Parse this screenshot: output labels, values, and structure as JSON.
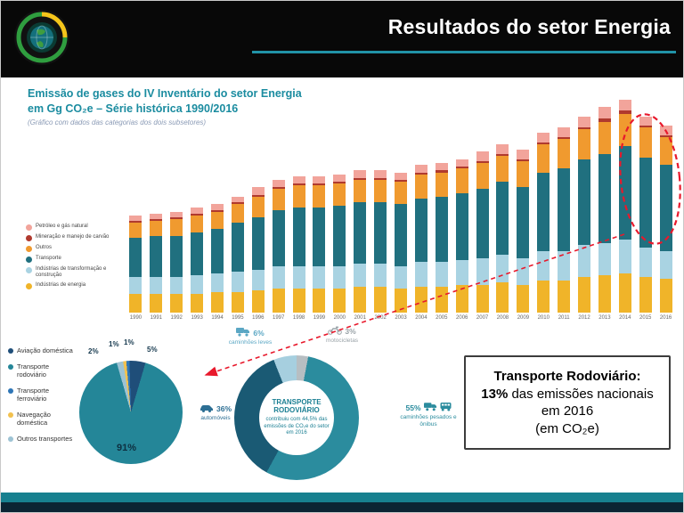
{
  "header": {
    "title": "Resultados do setor Energia"
  },
  "chart_section": {
    "title_line1": "Emissão de gases do IV Inventário do setor Energia",
    "title_line2": "em Gg CO₂e  – Série histórica 1990/2016",
    "subtitle": "(Gráfico com dados das categorias dos dois subsetores)"
  },
  "chart_data": [
    {
      "type": "bar",
      "stacked": true,
      "title": "Emissão de gases do IV Inventário do setor Energia em Gg CO₂e – Série histórica 1990/2016",
      "categories": [
        "1990",
        "1991",
        "1992",
        "1993",
        "1994",
        "1995",
        "1996",
        "1997",
        "1998",
        "1999",
        "2000",
        "2001",
        "2002",
        "2003",
        "2004",
        "2005",
        "2006",
        "2007",
        "2008",
        "2009",
        "2010",
        "2011",
        "2012",
        "2013",
        "2014",
        "2015",
        "2016"
      ],
      "series": [
        {
          "name": "Indústrias de energia",
          "color": "#f0b429",
          "values": [
            10,
            10,
            10,
            10,
            11,
            11,
            12,
            13,
            13,
            13,
            13,
            14,
            14,
            13,
            14,
            14,
            15,
            15,
            16,
            15,
            17,
            17,
            19,
            20,
            21,
            19,
            18
          ]
        },
        {
          "name": "Indústrias de transformação e construção",
          "color": "#a9d3e2",
          "values": [
            9,
            9,
            9,
            10,
            10,
            11,
            11,
            12,
            12,
            12,
            12,
            12,
            12,
            12,
            13,
            13,
            13,
            14,
            15,
            14,
            16,
            16,
            17,
            17,
            18,
            16,
            15
          ]
        },
        {
          "name": "Transporte",
          "color": "#20707f",
          "values": [
            21,
            22,
            22,
            23,
            24,
            26,
            28,
            30,
            31,
            31,
            32,
            33,
            33,
            33,
            34,
            35,
            36,
            37,
            39,
            38,
            42,
            44,
            46,
            48,
            50,
            48,
            46
          ]
        },
        {
          "name": "Outros",
          "color": "#f09a2f",
          "values": [
            8,
            8,
            9,
            9,
            9,
            10,
            11,
            11,
            12,
            12,
            12,
            12,
            12,
            12,
            13,
            13,
            13,
            14,
            14,
            14,
            15,
            16,
            16,
            17,
            17,
            16,
            15
          ]
        },
        {
          "name": "Mineração e manejo de carvão",
          "color": "#b03a2e",
          "values": [
            1,
            1,
            1,
            1,
            1,
            1,
            1,
            1,
            1,
            1,
            1,
            1,
            1,
            1,
            1,
            1,
            1,
            1,
            1,
            1,
            1,
            1,
            1,
            2,
            2,
            1,
            1
          ]
        },
        {
          "name": "Petróleo e gás natural",
          "color": "#f2a49b",
          "values": [
            3,
            3,
            3,
            3,
            3,
            3,
            4,
            4,
            4,
            4,
            4,
            4,
            4,
            4,
            4,
            4,
            4,
            5,
            5,
            5,
            5,
            5,
            6,
            6,
            6,
            5,
            5
          ]
        }
      ],
      "legend_position": "left",
      "grid": false
    },
    {
      "type": "pie",
      "slices": [
        {
          "label": "Outros transportes",
          "value": 2,
          "color": "#9dc3d4"
        },
        {
          "label": "Navegação doméstica",
          "value": 1,
          "color": "#f2c14e"
        },
        {
          "label": "Transporte ferroviário",
          "value": 1,
          "color": "#2e75b6"
        },
        {
          "label": "Aviação doméstica",
          "value": 5,
          "color": "#1f4e79"
        },
        {
          "label": "Transporte rodoviário",
          "value": 91,
          "color": "#248698"
        }
      ],
      "legend": [
        {
          "label": "Aviação doméstica",
          "color": "#1f4e79"
        },
        {
          "label": "Transporte rodoviário",
          "color": "#248698"
        },
        {
          "label": "Transporte ferroviário",
          "color": "#2e75b6"
        },
        {
          "label": "Navegação doméstica",
          "color": "#f2c14e"
        },
        {
          "label": "Outros transportes",
          "color": "#9dc3d4"
        }
      ]
    },
    {
      "type": "donut",
      "center_title": "TRANSPORTE RODOVIÁRIO",
      "center_text": "contribuiu com 44,5% das emissões de CO₂e do setor em 2016",
      "slices": [
        {
          "label": "motocicletas",
          "value": 3,
          "color": "#b7bec2"
        },
        {
          "label": "caminhões pesados e ônibus",
          "value": 55,
          "color": "#2b8c9e"
        },
        {
          "label": "automóveis",
          "value": 36,
          "color": "#1a5a74"
        },
        {
          "label": "caminhões leves",
          "value": 6,
          "color": "#a6cfdf"
        }
      ],
      "callouts": [
        {
          "pct": "6%",
          "label": "caminhões leves",
          "icon": "light-truck"
        },
        {
          "pct": "3%",
          "label": "motocicletas",
          "icon": "motorcycle"
        },
        {
          "pct": "36%",
          "label": "automóveis",
          "icon": "car"
        },
        {
          "pct": "55%",
          "label": "caminhões pesados e ônibus",
          "icon": "truck-bus"
        }
      ]
    }
  ],
  "info_box": {
    "title": "Transporte Rodoviário:",
    "pct": "13%",
    "line_rest": " das emissões nacionais em 2016",
    "line3": "(em CO₂e)"
  },
  "colors": {
    "accent_teal": "#1b8ca0",
    "annotation_red": "#e8192c",
    "footer_teal": "#17808f",
    "footer_dark": "#0b2433"
  }
}
